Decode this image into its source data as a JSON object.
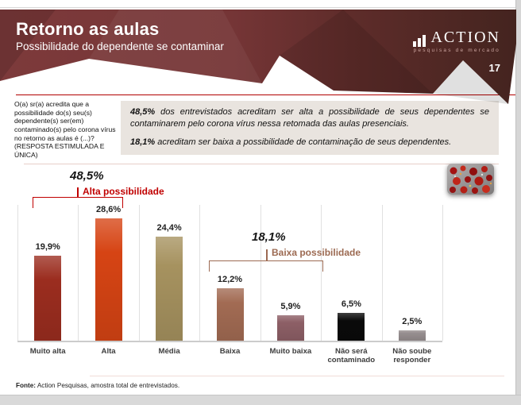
{
  "window": {
    "page_number": "17"
  },
  "header": {
    "title": "Retorno as aulas",
    "subtitle": "Possibilidade do dependente se contaminar",
    "logo": {
      "name": "ACTION",
      "tagline": "pesquisas de mercado",
      "icon": "bar-chart-icon"
    },
    "colors": {
      "base_left": "#7d3a3b",
      "base_right": "#44241f"
    }
  },
  "question": {
    "text": "O(a) sr(a) acredita que a possibilidade do(s) seu(s) dependente(s) ser(em) contaminado(s) pelo corona vírus no retorno as aulas é (...)? (RESPOSTA ESTIMULADA E ÚNICA)"
  },
  "highlights": {
    "p1_lead": "48,5%",
    "p1_rest": " dos entrevistados acreditam ser alta a possibilidade de seus dependentes se contaminarem pelo corona vírus nessa retomada das aulas presenciais.",
    "p2_lead": "18,1%",
    "p2_rest": " acreditam ser baixa a possibilidade de contaminação de seus dependentes."
  },
  "chart_data": {
    "type": "bar",
    "categories": [
      "Muito alta",
      "Alta",
      "Média",
      "Baixa",
      "Muito baixa",
      "Não será contaminado",
      "Não soube responder"
    ],
    "values": [
      19.9,
      28.6,
      24.4,
      12.2,
      5.9,
      6.5,
      2.5
    ],
    "value_labels": [
      "19,9%",
      "28,6%",
      "24,4%",
      "12,2%",
      "5,9%",
      "6,5%",
      "2,5%"
    ],
    "bar_colors": [
      "#9b2d1f",
      "#d64414",
      "#a6925f",
      "#a26b53",
      "#8d5f66",
      "#0a0a0a",
      "#968e8f"
    ],
    "title": "",
    "xlabel": "",
    "ylabel": "",
    "ylim": [
      0,
      30.5
    ],
    "grid": "vertical category separators, no y-axis",
    "legend": "none",
    "groups": [
      {
        "total": "48,5%",
        "label": "Alta possibilidade",
        "categories": [
          "Muito alta",
          "Alta"
        ],
        "color": "#c00000"
      },
      {
        "total": "18,1%",
        "label": "Baixa possibilidade",
        "categories": [
          "Baixa",
          "Muito baixa"
        ],
        "color": "#9c6a52"
      }
    ]
  },
  "decor": {
    "virus_image": "coronavirus-photo"
  },
  "footer": {
    "source_label": "Fonte:",
    "source_text": " Action Pesquisas, amostra total de entrevistados."
  }
}
